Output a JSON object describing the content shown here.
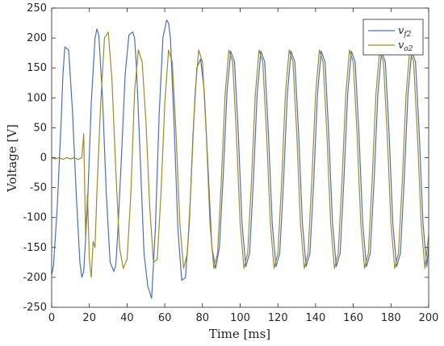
{
  "chart_data": {
    "type": "line",
    "title": "",
    "xlabel": "Time [ms]",
    "ylabel": "Voltage [V]",
    "xlim": [
      0,
      200
    ],
    "ylim": [
      -250,
      250
    ],
    "xticks": [
      0,
      20,
      40,
      60,
      80,
      100,
      120,
      140,
      160,
      180,
      200
    ],
    "yticks": [
      -250,
      -200,
      -150,
      -100,
      -50,
      0,
      50,
      100,
      150,
      200,
      250
    ],
    "grid": false,
    "legend_position": "top-right",
    "series": [
      {
        "name": "v_{f2}",
        "legend_main": "v",
        "legend_sub": "f2",
        "color": "#4a6fc0",
        "x": [
          0,
          1,
          3,
          5,
          6,
          7,
          9,
          11,
          13,
          15,
          16,
          17,
          19,
          21,
          23,
          24,
          25,
          27,
          29,
          31,
          33,
          34,
          35,
          37,
          39,
          41,
          43,
          44,
          45,
          47,
          49,
          51,
          53,
          55,
          57,
          59,
          61,
          62,
          63,
          65,
          67,
          69,
          71,
          73,
          75,
          77,
          79,
          81,
          83,
          85,
          87,
          89,
          91,
          93,
          95,
          97,
          99,
          101,
          103,
          105,
          107,
          109,
          111,
          113,
          115,
          117,
          119,
          121,
          123,
          125,
          127,
          129,
          131,
          133,
          135,
          137,
          139,
          141,
          143,
          145,
          147,
          149,
          151,
          153,
          155,
          157,
          159,
          161,
          163,
          165,
          167,
          169,
          171,
          173,
          175,
          177,
          179,
          181,
          183,
          185,
          187,
          189,
          191,
          193,
          195,
          197,
          199,
          200
        ],
        "y": [
          -195,
          -180,
          -80,
          60,
          140,
          185,
          180,
          80,
          -60,
          -175,
          -200,
          -190,
          -80,
          90,
          200,
          215,
          205,
          100,
          -60,
          -175,
          -190,
          -180,
          -130,
          0,
          140,
          205,
          210,
          200,
          150,
          0,
          -160,
          -215,
          -235,
          -120,
          70,
          200,
          230,
          225,
          200,
          50,
          -120,
          -205,
          -200,
          -110,
          40,
          150,
          165,
          110,
          -20,
          -150,
          -185,
          -150,
          -30,
          110,
          178,
          160,
          40,
          -110,
          -182,
          -160,
          -40,
          105,
          178,
          160,
          40,
          -110,
          -182,
          -160,
          -40,
          105,
          178,
          160,
          40,
          -110,
          -182,
          -160,
          -40,
          105,
          178,
          160,
          40,
          -110,
          -182,
          -160,
          -40,
          105,
          178,
          160,
          40,
          -110,
          -182,
          -160,
          -40,
          105,
          178,
          160,
          40,
          -110,
          -182,
          -160,
          -40,
          105,
          178,
          160,
          40,
          -110,
          -182,
          -150
        ]
      },
      {
        "name": "v_{o2}",
        "legend_main": "v",
        "legend_sub": "o2",
        "color": "#a08a2a",
        "x": [
          0,
          2,
          4,
          6,
          8,
          10,
          12,
          14,
          16,
          17,
          18,
          19,
          20,
          21,
          22,
          23,
          24,
          26,
          28,
          30,
          32,
          34,
          36,
          38,
          40,
          42,
          44,
          46,
          48,
          50,
          52,
          54,
          56,
          58,
          60,
          62,
          64,
          66,
          68,
          70,
          72,
          74,
          76,
          78,
          80,
          82,
          84,
          86,
          88,
          90,
          92,
          94,
          96,
          98,
          100,
          102,
          104,
          106,
          108,
          110,
          112,
          114,
          116,
          118,
          120,
          122,
          124,
          126,
          128,
          130,
          132,
          134,
          136,
          138,
          140,
          142,
          144,
          146,
          148,
          150,
          152,
          154,
          156,
          158,
          160,
          162,
          164,
          166,
          168,
          170,
          172,
          174,
          176,
          178,
          180,
          182,
          184,
          186,
          188,
          190,
          192,
          194,
          196,
          198,
          200
        ],
        "y": [
          0,
          -2,
          0,
          -3,
          0,
          -2,
          0,
          -3,
          0,
          40,
          -130,
          -60,
          -170,
          -200,
          -140,
          -150,
          -60,
          90,
          200,
          210,
          130,
          -20,
          -150,
          -185,
          -170,
          -60,
          110,
          180,
          160,
          60,
          -80,
          -175,
          -170,
          -60,
          90,
          180,
          160,
          40,
          -110,
          -185,
          -160,
          -40,
          105,
          180,
          160,
          40,
          -110,
          -185,
          -160,
          -40,
          105,
          180,
          160,
          40,
          -110,
          -185,
          -160,
          -40,
          105,
          180,
          160,
          40,
          -110,
          -185,
          -160,
          -40,
          105,
          180,
          160,
          40,
          -110,
          -185,
          -160,
          -40,
          105,
          180,
          160,
          40,
          -110,
          -185,
          -160,
          -40,
          105,
          180,
          160,
          40,
          -110,
          -185,
          -160,
          -40,
          105,
          180,
          160,
          40,
          -110,
          -185,
          -160,
          -40,
          105,
          180,
          160,
          40,
          -110,
          -185,
          -130
        ]
      }
    ]
  }
}
